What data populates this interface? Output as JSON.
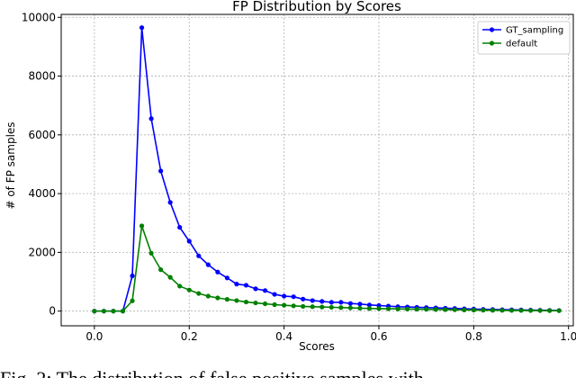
{
  "caption": "Fig. 2: The distribution of false positive samples with",
  "chart_data": {
    "type": "line",
    "title": "FP Distribution by Scores",
    "xlabel": "Scores",
    "ylabel": "# of FP samples",
    "xlim": [
      -0.07,
      1.01
    ],
    "ylim": [
      -500,
      10100
    ],
    "xticks": [
      0.0,
      0.2,
      0.4,
      0.6,
      0.8,
      1.0
    ],
    "xtick_labels": [
      "0.0",
      "0.2",
      "0.4",
      "0.6",
      "0.8",
      "1.0"
    ],
    "yticks": [
      0,
      2000,
      4000,
      6000,
      8000,
      10000
    ],
    "ytick_labels": [
      "0",
      "2000",
      "4000",
      "6000",
      "8000",
      "10000"
    ],
    "grid": true,
    "legend_position": "top-right",
    "x": [
      0.0,
      0.02,
      0.04,
      0.06,
      0.08,
      0.1,
      0.12,
      0.14,
      0.16,
      0.18,
      0.2,
      0.22,
      0.24,
      0.26,
      0.28,
      0.3,
      0.32,
      0.34,
      0.36,
      0.38,
      0.4,
      0.42,
      0.44,
      0.46,
      0.48,
      0.5,
      0.52,
      0.54,
      0.56,
      0.58,
      0.6,
      0.62,
      0.64,
      0.66,
      0.68,
      0.7,
      0.72,
      0.74,
      0.76,
      0.78,
      0.8,
      0.82,
      0.84,
      0.86,
      0.88,
      0.9,
      0.92,
      0.94,
      0.96,
      0.98
    ],
    "series": [
      {
        "name": "GT_sampling",
        "color": "#0000ff",
        "values": [
          0,
          0,
          0,
          0,
          1200,
          9650,
          6550,
          4770,
          3700,
          2850,
          2380,
          1880,
          1580,
          1330,
          1130,
          920,
          880,
          760,
          700,
          570,
          510,
          490,
          410,
          360,
          330,
          300,
          300,
          260,
          240,
          210,
          190,
          170,
          150,
          140,
          130,
          120,
          110,
          100,
          90,
          80,
          70,
          60,
          55,
          50,
          45,
          40,
          35,
          30,
          25,
          20
        ]
      },
      {
        "name": "default",
        "color": "#008000",
        "values": [
          0,
          0,
          0,
          0,
          350,
          2900,
          1970,
          1410,
          1150,
          850,
          720,
          600,
          510,
          450,
          400,
          360,
          310,
          280,
          250,
          220,
          200,
          180,
          160,
          150,
          140,
          130,
          120,
          110,
          100,
          90,
          85,
          80,
          75,
          70,
          65,
          60,
          55,
          50,
          45,
          40,
          35,
          30,
          28,
          26,
          24,
          22,
          20,
          18,
          16,
          14
        ]
      }
    ]
  }
}
